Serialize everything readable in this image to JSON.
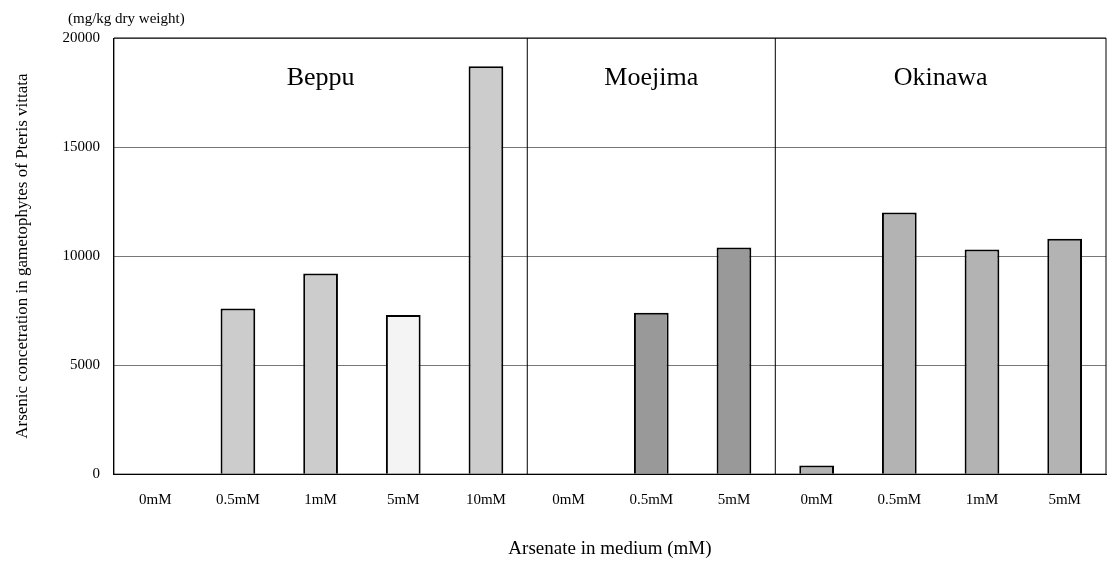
{
  "chart_data": {
    "type": "bar",
    "subtitle": "(mg/kg dry weight)",
    "xlabel": "Arsenate in medium (mM)",
    "ylabel": "Arsenic concetration in gametophytes of Pteris vittata",
    "categories": [
      "0mM",
      "0.5mM",
      "1mM",
      "5mM",
      "10mM",
      "0mM",
      "0.5mM",
      "5mM",
      "0mM",
      "0.5mM",
      "1mM",
      "5mM"
    ],
    "values": [
      0,
      7600,
      9200,
      7300,
      18700,
      0,
      7400,
      10400,
      400,
      12000,
      10300,
      10800
    ],
    "colors": [
      "#cccccc",
      "#cccccc",
      "#cccccc",
      "#f4f4f4",
      "#cccccc",
      "#999999",
      "#999999",
      "#999999",
      "#b3b3b3",
      "#b3b3b3",
      "#b3b3b3",
      "#b3b3b3"
    ],
    "ylim": [
      0,
      20000
    ],
    "yticks": [
      0,
      5000,
      10000,
      15000,
      20000
    ],
    "grid": "y",
    "legend": false,
    "annotations": [
      "Beppu",
      "Moejima",
      "Okinawa"
    ]
  }
}
